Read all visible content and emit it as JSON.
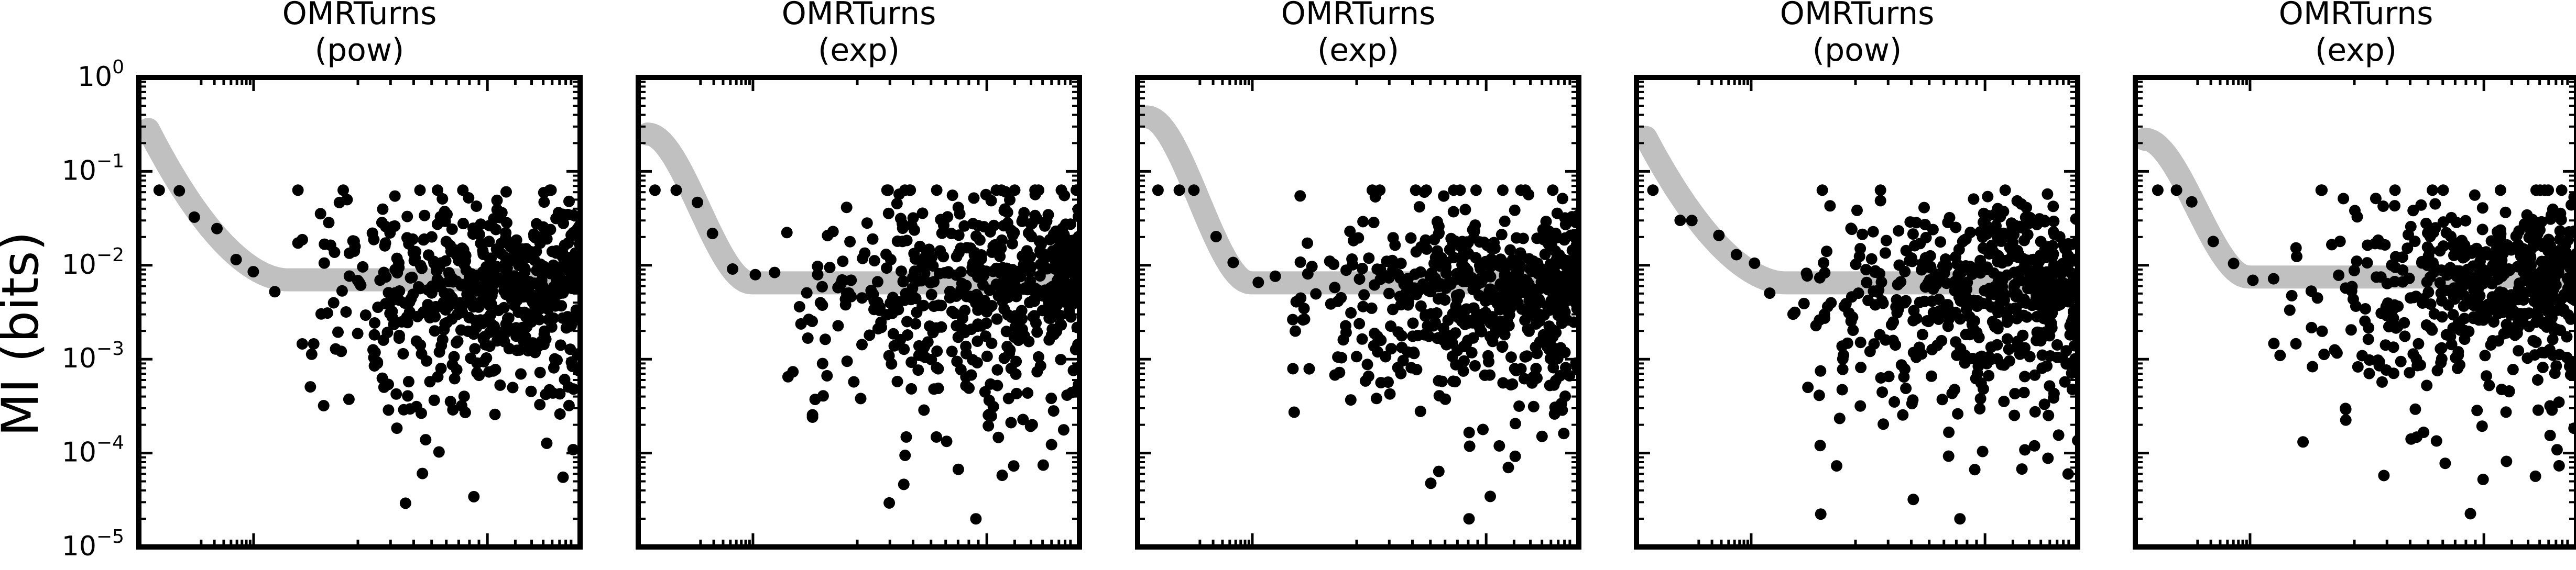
{
  "figure": {
    "ylabel": "MI (bits)"
  },
  "colors": {
    "points": "#000000",
    "fit_band": "#c0c0c0",
    "axes": "#000000",
    "background": "#ffffff"
  },
  "chart_data": [
    {
      "type": "scatter",
      "title_line1": "OMRTurns",
      "title_line2": "(pow)",
      "ylabel": "MI (bits)",
      "y_scale": "log",
      "x_scale": "log",
      "ylim": [
        1e-05,
        1
      ],
      "yticks": [
        1,
        0.1,
        0.01,
        0.001,
        0.0001,
        1e-05
      ],
      "fit_curve": {
        "shape": "pow",
        "plateau": 0.007,
        "peak": 0.28
      },
      "point_count": 580,
      "scatter_seed": 11,
      "grid": false,
      "legend": "none"
    },
    {
      "type": "scatter",
      "title_line1": "OMRTurns",
      "title_line2": "(exp)",
      "ylabel": "",
      "y_scale": "log",
      "x_scale": "log",
      "ylim": [
        1e-05,
        1
      ],
      "fit_curve": {
        "shape": "exp",
        "plateau": 0.0065,
        "peak": 0.25
      },
      "point_count": 540,
      "scatter_seed": 23,
      "grid": false,
      "legend": "none"
    },
    {
      "type": "scatter",
      "title_line1": "OMRTurns",
      "title_line2": "(exp)",
      "ylabel": "",
      "y_scale": "log",
      "x_scale": "log",
      "ylim": [
        1e-05,
        1
      ],
      "fit_curve": {
        "shape": "exp",
        "plateau": 0.0065,
        "peak": 0.38
      },
      "point_count": 600,
      "scatter_seed": 37,
      "grid": false,
      "legend": "none"
    },
    {
      "type": "scatter",
      "title_line1": "OMRTurns",
      "title_line2": "(pow)",
      "ylabel": "",
      "y_scale": "log",
      "x_scale": "log",
      "ylim": [
        1e-05,
        1
      ],
      "fit_curve": {
        "shape": "pow",
        "plateau": 0.0065,
        "peak": 0.23
      },
      "point_count": 560,
      "scatter_seed": 53,
      "grid": false,
      "legend": "none"
    },
    {
      "type": "scatter",
      "title_line1": "OMRTurns",
      "title_line2": "(exp)",
      "ylabel": "",
      "y_scale": "log",
      "x_scale": "log",
      "ylim": [
        1e-05,
        1
      ],
      "fit_curve": {
        "shape": "exp",
        "plateau": 0.0075,
        "peak": 0.22
      },
      "point_count": 560,
      "scatter_seed": 71,
      "grid": false,
      "legend": "none"
    }
  ]
}
